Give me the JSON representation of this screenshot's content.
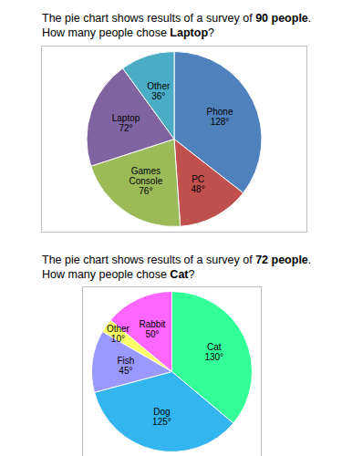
{
  "chart_data": [
    {
      "type": "pie",
      "title": "The pie chart shows results of a survey of 90 people.",
      "subtitle": "How many people chose Laptop?",
      "categories": [
        "Phone",
        "PC",
        "Games Console",
        "Laptop",
        "Other"
      ],
      "values": [
        128,
        48,
        76,
        72,
        36
      ],
      "value_labels": [
        "128°",
        "48°",
        "76°",
        "72°",
        "36°"
      ],
      "colors": [
        "#4f81bd",
        "#c0504d",
        "#9bbb59",
        "#8064a2",
        "#4bacc6"
      ],
      "data_labels": true
    },
    {
      "type": "pie",
      "title": "The pie chart shows results of a survey of 72 people.",
      "subtitle": "How many people chose Cat?",
      "categories": [
        "Cat",
        "Dog",
        "Fish",
        "Other",
        "Rabbit"
      ],
      "values": [
        130,
        125,
        45,
        10,
        50
      ],
      "value_labels": [
        "130°",
        "125°",
        "45°",
        "10°",
        "50°"
      ],
      "colors": [
        "#33ff99",
        "#33b5f0",
        "#9999ff",
        "#ffff66",
        "#ff66ff"
      ],
      "data_labels": true
    }
  ]
}
